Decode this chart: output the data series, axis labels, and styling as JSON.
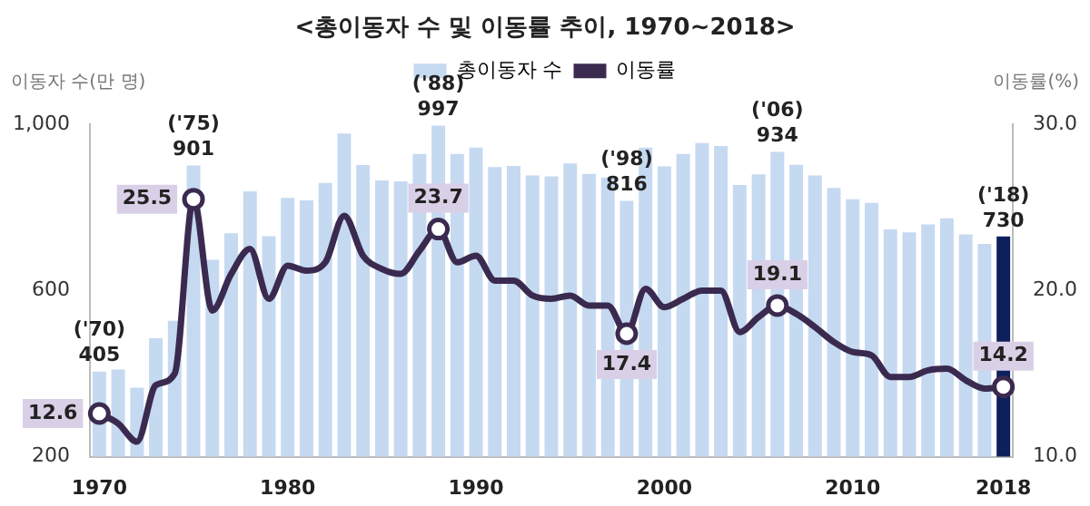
{
  "chart_data": {
    "type": "bar",
    "title": "<총이동자 수 및 이동률 추이, 1970~2018>",
    "ylabel": "이동자 수(만 명)",
    "y2label": "이동률(%)",
    "categories": [
      "1970",
      null,
      null,
      null,
      null,
      null,
      null,
      null,
      null,
      null,
      "1980",
      null,
      null,
      null,
      null,
      null,
      null,
      null,
      null,
      null,
      "1990",
      null,
      null,
      null,
      null,
      null,
      null,
      null,
      null,
      null,
      "2000",
      null,
      null,
      null,
      null,
      null,
      null,
      null,
      null,
      null,
      "2010",
      null,
      null,
      null,
      null,
      null,
      null,
      null,
      "2018"
    ],
    "series": [
      {
        "name": "총이동자 수",
        "color": "#c5d9f1",
        "colors": [
          "#c5d9f1",
          "#c5d9f1",
          "#c5d9f1",
          "#c5d9f1",
          "#c5d9f1",
          "#c5d9f1",
          "#c5d9f1",
          "#c5d9f1",
          "#c5d9f1",
          "#c5d9f1",
          "#c5d9f1",
          "#c5d9f1",
          "#c5d9f1",
          "#c5d9f1",
          "#c5d9f1",
          "#c5d9f1",
          "#c5d9f1",
          "#c5d9f1",
          "#c5d9f1",
          "#c5d9f1",
          "#c5d9f1",
          "#c5d9f1",
          "#c5d9f1",
          "#c5d9f1",
          "#c5d9f1",
          "#c5d9f1",
          "#c5d9f1",
          "#c5d9f1",
          "#c5d9f1",
          "#c5d9f1",
          "#c5d9f1",
          "#c5d9f1",
          "#c5d9f1",
          "#c5d9f1",
          "#c5d9f1",
          "#c5d9f1",
          "#c5d9f1",
          "#c5d9f1",
          "#c5d9f1",
          "#c5d9f1",
          "#c5d9f1",
          "#c5d9f1",
          "#c5d9f1",
          "#c5d9f1",
          "#c5d9f1",
          "#c5d9f1",
          "#c5d9f1",
          "#c5d9f1",
          "#0d1f5c"
        ],
        "values": [
          405,
          410,
          366,
          485,
          527,
          901,
          674,
          738,
          839,
          731,
          823,
          817,
          859,
          978,
          902,
          865,
          863,
          929,
          997,
          929,
          944,
          897,
          900,
          877,
          875,
          906,
          881,
          872,
          816,
          944,
          899,
          929,
          955,
          948,
          854,
          880,
          934,
          903,
          877,
          847,
          820,
          811,
          747,
          740,
          759,
          774,
          735,
          712,
          730
        ],
        "value_labels": [
          "405",
          null,
          null,
          null,
          null,
          "901",
          null,
          null,
          null,
          null,
          null,
          null,
          null,
          null,
          null,
          null,
          null,
          null,
          "997",
          null,
          null,
          null,
          null,
          null,
          null,
          null,
          null,
          null,
          "816",
          null,
          null,
          null,
          null,
          null,
          null,
          null,
          "934",
          null,
          null,
          null,
          null,
          null,
          null,
          null,
          null,
          null,
          null,
          null,
          "730"
        ]
      },
      {
        "name": "이동률",
        "type": "line",
        "axis": "y2",
        "color": "#3b2a4f",
        "values": [
          12.6,
          12.0,
          10.9,
          14.3,
          15.0,
          25.5,
          18.8,
          21.0,
          22.5,
          19.5,
          21.5,
          21.2,
          21.7,
          24.5,
          22.1,
          21.3,
          21.0,
          22.4,
          23.7,
          21.7,
          22.1,
          20.6,
          20.6,
          19.7,
          19.5,
          19.7,
          19.1,
          19.1,
          17.4,
          20.1,
          19.0,
          19.5,
          20.0,
          20.0,
          17.5,
          18.4,
          19.1,
          18.6,
          17.8,
          16.9,
          16.3,
          16.1,
          14.8,
          14.8,
          15.2,
          15.3,
          14.6,
          14.1,
          14.2
        ],
        "value_labels": [
          "12.6",
          null,
          null,
          null,
          null,
          "25.5",
          null,
          null,
          null,
          null,
          null,
          null,
          null,
          null,
          null,
          null,
          null,
          null,
          "23.7",
          null,
          null,
          null,
          null,
          null,
          null,
          null,
          null,
          null,
          "17.4",
          null,
          null,
          null,
          null,
          null,
          null,
          null,
          "19.1",
          null,
          null,
          null,
          null,
          null,
          null,
          null,
          null,
          null,
          null,
          null,
          "14.2"
        ]
      }
    ],
    "ylim": [
      200,
      1000
    ],
    "yticks": [
      200,
      600,
      {
        "value": 1000,
        "label": "1,000"
      }
    ],
    "y2lim": [
      10,
      30
    ],
    "y2ticks": [
      {
        "value": 10,
        "label": "10.0"
      },
      {
        "value": 20,
        "label": "20.0"
      },
      {
        "value": 30,
        "label": "30.0"
      }
    ],
    "annotations": [
      "('70)",
      "('75)",
      "('88)",
      "('98)",
      "('06)",
      "('18)"
    ],
    "grid": false,
    "legend": "top"
  }
}
